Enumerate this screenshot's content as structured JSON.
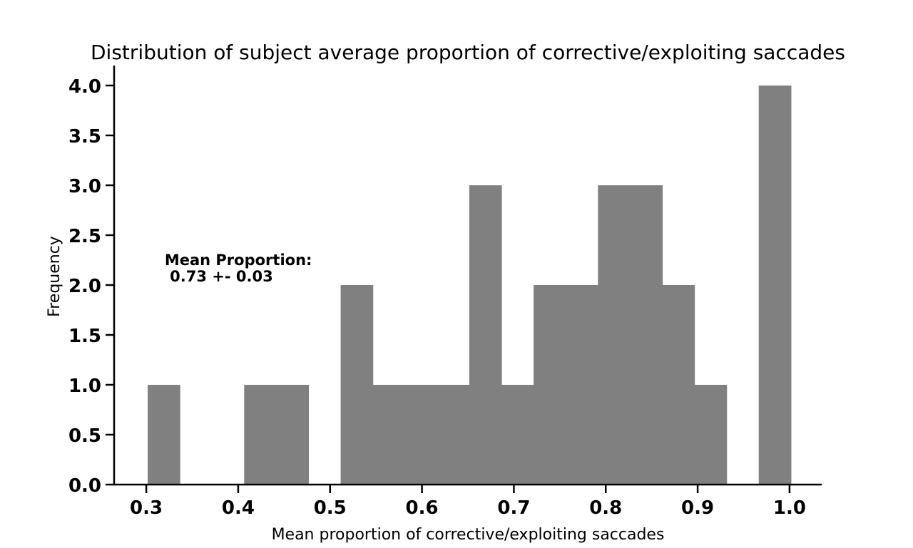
{
  "chart_data": {
    "type": "bar",
    "title": "Distribution of subject average proportion of corrective/exploiting saccades",
    "xlabel": "Mean proportion of corrective/exploiting saccades",
    "ylabel": "Frequency",
    "bar_color": "#808080",
    "xlim": [
      0.265,
      1.035
    ],
    "ylim": [
      0,
      4.2
    ],
    "xticks": [
      0.3,
      0.4,
      0.5,
      0.6,
      0.7,
      0.8,
      0.9,
      1.0
    ],
    "xtick_labels": [
      "0.3",
      "0.4",
      "0.5",
      "0.6",
      "0.7",
      "0.8",
      "0.9",
      "1.0"
    ],
    "yticks": [
      0.0,
      0.5,
      1.0,
      1.5,
      2.0,
      2.5,
      3.0,
      3.5,
      4.0
    ],
    "ytick_labels": [
      "0.0",
      "0.5",
      "1.0",
      "1.5",
      "2.0",
      "2.5",
      "3.0",
      "3.5",
      "4.0"
    ],
    "bin_edges": [
      0.3015,
      0.3365,
      0.3715,
      0.4065,
      0.4415,
      0.4765,
      0.5115,
      0.5465,
      0.5815,
      0.6165,
      0.6515,
      0.6865,
      0.7215,
      0.7565,
      0.7915,
      0.8265,
      0.8615,
      0.8965,
      0.9315,
      0.9665,
      1.0015
    ],
    "values": [
      1,
      0,
      0,
      1,
      1,
      0,
      2,
      1,
      1,
      1,
      3,
      1,
      2,
      2,
      3,
      3,
      2,
      1,
      0,
      4
    ],
    "annotation": {
      "line1": "Mean Proportion:",
      "line2": " 0.73 +- 0.03",
      "x": 0.32,
      "y": 2.2
    },
    "grid": false,
    "legend": "none"
  }
}
